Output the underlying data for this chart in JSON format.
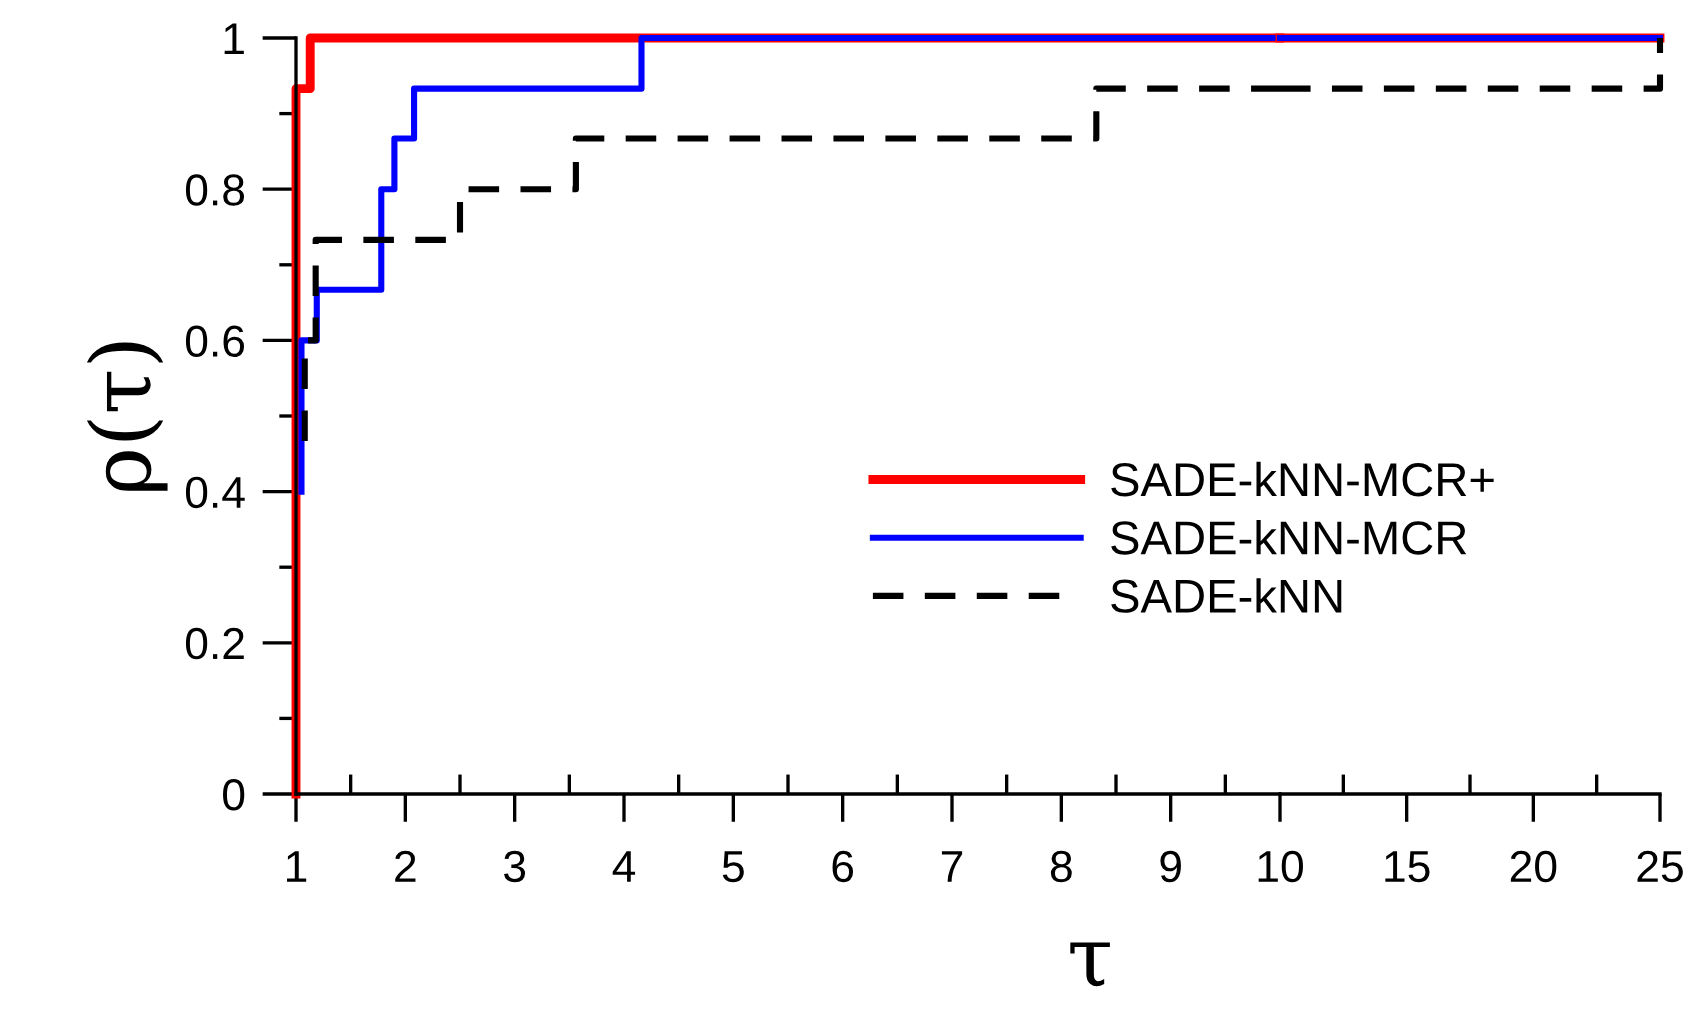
{
  "chart_data": [
    {
      "type": "line",
      "ylabel": "ρ(τ)",
      "xlabel": "τ",
      "xlim": [
        1,
        10
      ],
      "ylim": [
        0,
        1
      ],
      "xticks": [
        1,
        {
          "value": 1.5,
          "label": null
        },
        2,
        {
          "value": 2.5,
          "label": null
        },
        3,
        {
          "value": 3.5,
          "label": null
        },
        4,
        {
          "value": 4.5,
          "label": null
        },
        5,
        {
          "value": 5.5,
          "label": null
        },
        6,
        {
          "value": 6.5,
          "label": null
        },
        7,
        {
          "value": 7.5,
          "label": null
        },
        8,
        {
          "value": 8.5,
          "label": null
        },
        9,
        {
          "value": 9.5,
          "label": null
        },
        10
      ],
      "yticks": [
        0,
        {
          "value": 0.1,
          "label": null
        },
        0.2,
        {
          "value": 0.3,
          "label": null
        },
        0.4,
        {
          "value": 0.5,
          "label": null
        },
        0.6,
        {
          "value": 0.7,
          "label": null
        },
        0.8,
        {
          "value": 0.9,
          "label": null
        },
        1
      ],
      "grid": false,
      "series": [
        {
          "color": "#ff0000",
          "line_style": "solid",
          "x": [
            1,
            1,
            1.13,
            1.13,
            10
          ],
          "values": [
            0,
            0.933,
            0.933,
            1,
            1
          ]
        },
        {
          "color": "#0000ff",
          "line_style": "solid",
          "x": [
            1.05,
            1.05,
            1.19,
            1.19,
            1.78,
            1.78,
            1.9,
            1.9,
            2.08,
            2.08,
            4.16,
            4.16,
            10
          ],
          "values": [
            0.4,
            0.6,
            0.6,
            0.667,
            0.667,
            0.8,
            0.8,
            0.867,
            0.867,
            0.933,
            0.933,
            1,
            1
          ]
        },
        {
          "color": "#000000",
          "line_style": "dashed",
          "x": [
            1.08,
            1.08,
            1.18,
            1.18,
            2.5,
            2.5,
            3.56,
            3.56,
            8.32,
            8.32,
            10
          ],
          "values": [
            0.467,
            0.6,
            0.6,
            0.733,
            0.733,
            0.8,
            0.8,
            0.867,
            0.867,
            0.933,
            0.933
          ]
        }
      ]
    },
    {
      "type": "line",
      "xlim": [
        10,
        25
      ],
      "ylim": [
        0,
        1
      ],
      "tick_labels": "x",
      "legend": "left",
      "xticks": [
        {
          "value": 12.5,
          "label": null
        },
        15,
        {
          "value": 17.5,
          "label": null
        },
        20,
        {
          "value": 22.5,
          "label": null
        },
        25
      ],
      "series": [
        {
          "name": "SADE-kNN-MCR+",
          "color": "#ff0000",
          "line_style": "solid",
          "x": [
            10,
            25
          ],
          "values": [
            1,
            1
          ]
        },
        {
          "name": "SADE-kNN-MCR",
          "color": "#0000ff",
          "line_style": "solid",
          "x": [
            10,
            25
          ],
          "values": [
            1,
            1
          ]
        },
        {
          "name": "SADE-kNN",
          "color": "#000000",
          "line_style": "dashed",
          "x": [
            10,
            25,
            25
          ],
          "values": [
            0.933,
            0.933,
            1
          ]
        }
      ]
    }
  ]
}
